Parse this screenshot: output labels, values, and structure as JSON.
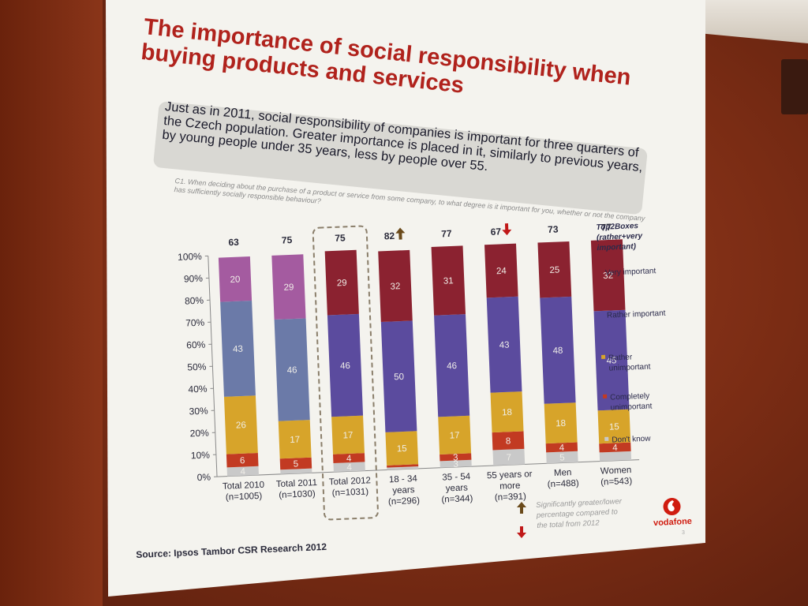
{
  "slide": {
    "title": "The importance of social responsibility when buying products and services",
    "subtitle": "Just as in 2011, social responsibility of companies is important for three quarters of the Czech population.  Greater importance is placed in it, similarly to previous years, by young people under 35 years, less by people over 55.",
    "question": "C1. When deciding about  the purchase of a product or service from some company, to what degree is it important for you, whether or not the company has sufficiently socially responsible behaviour?",
    "source": "Source: Ipsos  Tambor CSR Research 2012",
    "significance_note": "Significantly greater/lower percentage compared to the total from 2012",
    "logo_text": "vodafone",
    "page_number": "3"
  },
  "colors": {
    "very_important": "#8b2230",
    "rather_important": "#5b4b9e",
    "rather_important_2010": "#6b7aa8",
    "rather_unimportant": "#d7a42a",
    "completely_unimportant": "#c23a22",
    "dont_know": "#c9c9c9",
    "top_2010_very": "#a45ba0",
    "up_arrow": "#6a4a1a",
    "down_arrow": "#c01818"
  },
  "chart_data": {
    "type": "bar",
    "stacked": true,
    "categories": [
      "Total 2010\n(n=1005)",
      "Total 2011\n(n=1030)",
      "Total 2012\n(n=1031)",
      "18 - 34\nyears\n(n=296)",
      "35 - 54\nyears\n(n=344)",
      "55 years or\nmore\n(n=391)",
      "Men\n(n=488)",
      "Women\n(n=543)"
    ],
    "top2boxes": [
      "63",
      "75",
      "75",
      "82",
      "77",
      "67",
      "73",
      "77"
    ],
    "significance": [
      "",
      "",
      "",
      "up",
      "",
      "down",
      "",
      ""
    ],
    "highlighted_category": 2,
    "series": [
      {
        "name": "Don't know",
        "values": [
          4,
          2,
          4,
          1,
          3,
          7,
          5,
          4
        ],
        "labels": [
          "4",
          "",
          "4",
          "",
          "3",
          "7",
          "5",
          ""
        ]
      },
      {
        "name": "Completely unimportant",
        "values": [
          6,
          5,
          4,
          1,
          3,
          8,
          4,
          4
        ],
        "labels": [
          "6",
          "5",
          "4",
          "",
          "3",
          "8",
          "4",
          "4"
        ]
      },
      {
        "name": "Rather unimportant",
        "values": [
          26,
          17,
          17,
          15,
          17,
          18,
          18,
          15
        ],
        "labels": [
          "26",
          "17",
          "17",
          "15",
          "17",
          "18",
          "18",
          "15"
        ]
      },
      {
        "name": "Rather important",
        "values": [
          43,
          46,
          46,
          50,
          46,
          43,
          48,
          45
        ],
        "labels": [
          "43",
          "46",
          "46",
          "50",
          "46",
          "43",
          "48",
          "45"
        ]
      },
      {
        "name": "Very important",
        "values": [
          20,
          29,
          29,
          32,
          31,
          24,
          25,
          32
        ],
        "labels": [
          "20",
          "29",
          "29",
          "32",
          "31",
          "24",
          "25",
          "32"
        ]
      }
    ],
    "yticks": [
      "0%",
      "10%",
      "20%",
      "30%",
      "40%",
      "50%",
      "60%",
      "70%",
      "80%",
      "90%",
      "100%"
    ],
    "ylim": [
      0,
      100
    ],
    "legend_title": "Top2Boxes (rather+very important)",
    "legend": [
      "Very important",
      "Rather important",
      "Rather unimportant",
      "Completely unimportant",
      "Don't know"
    ],
    "legend_position": "right"
  }
}
